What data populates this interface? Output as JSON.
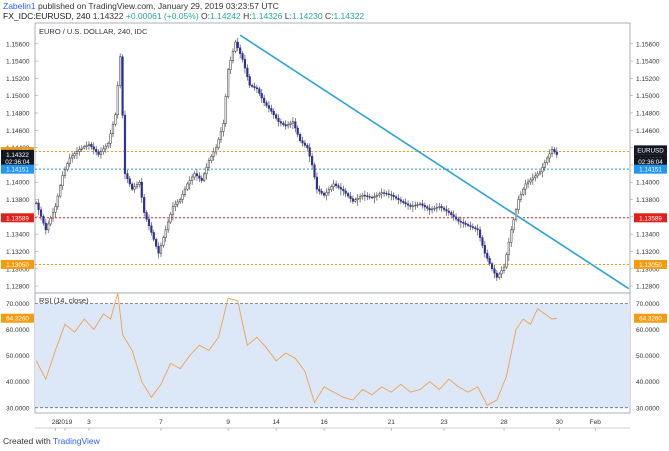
{
  "header": {
    "user": "Zabelin1",
    "published": "published on TradingView.com, January 29, 2019 03:23:57 UTC",
    "symbol": "FX_IDC:EURUSD, 240",
    "price": "1.14322",
    "change": "+0.00061 (+0.05%)",
    "o_label": "O:",
    "o_value": "1.14242",
    "h_label": "H:",
    "h_value": "1.14326",
    "l_label": "L:",
    "l_value": "1.14230",
    "c_label": "C:",
    "c_value": "1.14322"
  },
  "footer": {
    "created_with": "Created with",
    "brand": "TradingView"
  },
  "colors": {
    "up_candle": "#ffffff",
    "down_candle": "#2b2f9a",
    "trendline": "#29a3d6",
    "rsi_line": "#f0a050",
    "rsi_band": "#dce8f8",
    "orange_level": "#f39c12",
    "red_level": "#e0201b",
    "blue_level": "#2196f3"
  },
  "chart_data": [
    {
      "type": "candlestick",
      "title": "EURO / U.S. DOLLAR, 240, IDC",
      "y_ticks": [
        "1.15600",
        "1.15400",
        "1.15200",
        "1.15000",
        "1.14800",
        "1.14600",
        "1.14400",
        "1.14200",
        "1.14000",
        "1.13800",
        "1.13600",
        "1.13400",
        "1.13200",
        "1.13000",
        "1.12800"
      ],
      "ylim": [
        1.1272,
        1.1584
      ],
      "x_ticks": [
        "28",
        "2019",
        "3",
        "7",
        "9",
        "14",
        "16",
        "21",
        "23",
        "28",
        "30",
        "Feb"
      ],
      "x_tick_index": [
        8,
        12,
        22,
        52,
        80,
        100,
        120,
        148,
        170,
        195,
        218,
        233
      ],
      "n_bars": 248,
      "points": [
        {
          "i": 0,
          "v": 1.1376
        },
        {
          "i": 4,
          "v": 1.1345
        },
        {
          "i": 8,
          "v": 1.1372
        },
        {
          "i": 11,
          "v": 1.1408
        },
        {
          "i": 14,
          "v": 1.1428
        },
        {
          "i": 18,
          "v": 1.1438
        },
        {
          "i": 22,
          "v": 1.1444
        },
        {
          "i": 26,
          "v": 1.1432
        },
        {
          "i": 30,
          "v": 1.1445
        },
        {
          "i": 33,
          "v": 1.1478
        },
        {
          "i": 35,
          "v": 1.1545
        },
        {
          "i": 37,
          "v": 1.141
        },
        {
          "i": 40,
          "v": 1.1392
        },
        {
          "i": 43,
          "v": 1.14
        },
        {
          "i": 45,
          "v": 1.1365
        },
        {
          "i": 48,
          "v": 1.1342
        },
        {
          "i": 51,
          "v": 1.1318
        },
        {
          "i": 54,
          "v": 1.1345
        },
        {
          "i": 57,
          "v": 1.1372
        },
        {
          "i": 60,
          "v": 1.138
        },
        {
          "i": 63,
          "v": 1.1398
        },
        {
          "i": 66,
          "v": 1.141
        },
        {
          "i": 69,
          "v": 1.1402
        },
        {
          "i": 72,
          "v": 1.1425
        },
        {
          "i": 75,
          "v": 1.144
        },
        {
          "i": 78,
          "v": 1.1468
        },
        {
          "i": 80,
          "v": 1.153
        },
        {
          "i": 83,
          "v": 1.1562
        },
        {
          "i": 86,
          "v": 1.1542
        },
        {
          "i": 89,
          "v": 1.1512
        },
        {
          "i": 92,
          "v": 1.1508
        },
        {
          "i": 95,
          "v": 1.1492
        },
        {
          "i": 98,
          "v": 1.1482
        },
        {
          "i": 101,
          "v": 1.147
        },
        {
          "i": 104,
          "v": 1.1465
        },
        {
          "i": 107,
          "v": 1.147
        },
        {
          "i": 110,
          "v": 1.1448
        },
        {
          "i": 113,
          "v": 1.144
        },
        {
          "i": 115,
          "v": 1.142
        },
        {
          "i": 117,
          "v": 1.1392
        },
        {
          "i": 120,
          "v": 1.1385
        },
        {
          "i": 124,
          "v": 1.1398
        },
        {
          "i": 128,
          "v": 1.139
        },
        {
          "i": 132,
          "v": 1.1378
        },
        {
          "i": 136,
          "v": 1.1385
        },
        {
          "i": 140,
          "v": 1.1382
        },
        {
          "i": 144,
          "v": 1.1388
        },
        {
          "i": 148,
          "v": 1.1385
        },
        {
          "i": 152,
          "v": 1.1378
        },
        {
          "i": 156,
          "v": 1.1372
        },
        {
          "i": 160,
          "v": 1.1375
        },
        {
          "i": 164,
          "v": 1.1368
        },
        {
          "i": 168,
          "v": 1.1372
        },
        {
          "i": 172,
          "v": 1.1365
        },
        {
          "i": 176,
          "v": 1.1355
        },
        {
          "i": 180,
          "v": 1.135
        },
        {
          "i": 184,
          "v": 1.1345
        },
        {
          "i": 187,
          "v": 1.1318
        },
        {
          "i": 190,
          "v": 1.13
        },
        {
          "i": 192,
          "v": 1.129
        },
        {
          "i": 195,
          "v": 1.1302
        },
        {
          "i": 198,
          "v": 1.1345
        },
        {
          "i": 201,
          "v": 1.138
        },
        {
          "i": 204,
          "v": 1.1398
        },
        {
          "i": 207,
          "v": 1.1405
        },
        {
          "i": 210,
          "v": 1.1412
        },
        {
          "i": 213,
          "v": 1.1428
        },
        {
          "i": 215,
          "v": 1.1438
        },
        {
          "i": 217,
          "v": 1.1432
        }
      ],
      "last_index": 217,
      "trendline": {
        "x1": 85,
        "y1": 1.157,
        "x2": 247,
        "y2": 1.1277
      },
      "levels": [
        {
          "value": 1.14355,
          "label": "1.14355",
          "color": "#f39c12"
        },
        {
          "value": 1.13589,
          "label": "1.13589",
          "color": "#e0201b"
        },
        {
          "value": 1.1305,
          "label": "1.13050",
          "color": "#f39c12"
        },
        {
          "value": 1.14151,
          "label": "1.14151",
          "color": "#2196f3"
        }
      ],
      "left_tags": [
        {
          "value": 1.14355,
          "label": "1.14355",
          "color": "#f39c12"
        },
        {
          "value": 1.14322,
          "label": "1.14322",
          "color": "#131722"
        },
        {
          "value": 1.14237,
          "label": "02:36:04",
          "color": "#131722"
        },
        {
          "value": 1.14151,
          "label": "1.14151",
          "color": "#2196f3"
        },
        {
          "value": 1.13589,
          "label": "1.13589",
          "color": "#e0201b"
        },
        {
          "value": 1.1305,
          "label": "1.13050",
          "color": "#f39c12"
        }
      ],
      "right_tags": [
        {
          "value": 1.14355,
          "label": "1.14355",
          "color": "#f39c12"
        },
        {
          "value": 1.14322,
          "label": "EURUSD",
          "color": "#131722",
          "extra": "1.14322"
        },
        {
          "value": 1.14237,
          "label": "02:36:04",
          "color": "#131722"
        },
        {
          "value": 1.14151,
          "label": "1.14151",
          "color": "#2196f3"
        },
        {
          "value": 1.13589,
          "label": "1.13589",
          "color": "#e0201b"
        },
        {
          "value": 1.1305,
          "label": "1.13050",
          "color": "#f39c12"
        }
      ]
    },
    {
      "type": "line",
      "title": "RSI (14, close)",
      "y_ticks": [
        "70.0000",
        "60.0000",
        "50.0000",
        "40.0000",
        "30.0000"
      ],
      "ylim": [
        28,
        74
      ],
      "band": [
        30,
        70
      ],
      "current": {
        "value": 64.326,
        "label": "64.3260"
      },
      "points": [
        {
          "i": 0,
          "v": 48
        },
        {
          "i": 4,
          "v": 41
        },
        {
          "i": 8,
          "v": 52
        },
        {
          "i": 12,
          "v": 62
        },
        {
          "i": 16,
          "v": 59
        },
        {
          "i": 20,
          "v": 64
        },
        {
          "i": 24,
          "v": 60
        },
        {
          "i": 28,
          "v": 66
        },
        {
          "i": 31,
          "v": 64
        },
        {
          "i": 34,
          "v": 74
        },
        {
          "i": 36,
          "v": 58
        },
        {
          "i": 40,
          "v": 52
        },
        {
          "i": 44,
          "v": 40
        },
        {
          "i": 48,
          "v": 34
        },
        {
          "i": 52,
          "v": 39
        },
        {
          "i": 56,
          "v": 47
        },
        {
          "i": 60,
          "v": 45
        },
        {
          "i": 64,
          "v": 50
        },
        {
          "i": 68,
          "v": 54
        },
        {
          "i": 72,
          "v": 52
        },
        {
          "i": 76,
          "v": 57
        },
        {
          "i": 80,
          "v": 72
        },
        {
          "i": 84,
          "v": 71
        },
        {
          "i": 88,
          "v": 54
        },
        {
          "i": 92,
          "v": 57
        },
        {
          "i": 96,
          "v": 53
        },
        {
          "i": 100,
          "v": 48
        },
        {
          "i": 104,
          "v": 51
        },
        {
          "i": 108,
          "v": 49
        },
        {
          "i": 112,
          "v": 44
        },
        {
          "i": 116,
          "v": 32
        },
        {
          "i": 120,
          "v": 38
        },
        {
          "i": 124,
          "v": 36
        },
        {
          "i": 128,
          "v": 34
        },
        {
          "i": 132,
          "v": 33
        },
        {
          "i": 136,
          "v": 37
        },
        {
          "i": 140,
          "v": 35
        },
        {
          "i": 144,
          "v": 38
        },
        {
          "i": 148,
          "v": 36
        },
        {
          "i": 152,
          "v": 39
        },
        {
          "i": 156,
          "v": 36
        },
        {
          "i": 160,
          "v": 37
        },
        {
          "i": 164,
          "v": 40
        },
        {
          "i": 168,
          "v": 37
        },
        {
          "i": 172,
          "v": 41
        },
        {
          "i": 176,
          "v": 38
        },
        {
          "i": 180,
          "v": 36
        },
        {
          "i": 184,
          "v": 38
        },
        {
          "i": 188,
          "v": 31
        },
        {
          "i": 192,
          "v": 33
        },
        {
          "i": 196,
          "v": 42
        },
        {
          "i": 200,
          "v": 60
        },
        {
          "i": 203,
          "v": 64
        },
        {
          "i": 206,
          "v": 62
        },
        {
          "i": 209,
          "v": 68
        },
        {
          "i": 212,
          "v": 66
        },
        {
          "i": 215,
          "v": 64
        },
        {
          "i": 217,
          "v": 64.3
        }
      ]
    }
  ]
}
